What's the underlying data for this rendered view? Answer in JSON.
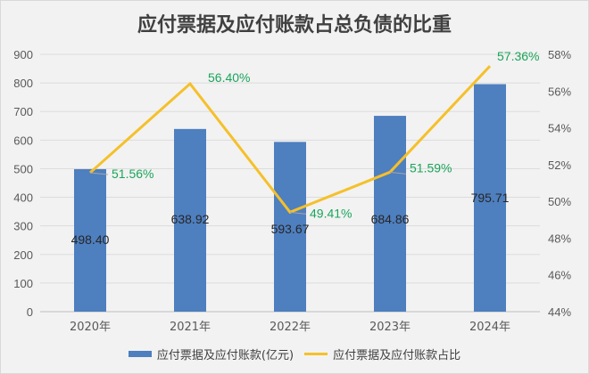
{
  "title": "应付票据及应付账款占总负债的比重",
  "legend": {
    "bar_label": "应付票据及应付账款(亿元)",
    "line_label": "应付票据及应付账款占比"
  },
  "colors": {
    "bar": "#4e7fbf",
    "line": "#f5c02a",
    "line_label": "#1aa55a",
    "bar_label": "#262626",
    "grid": "#dcdcdc",
    "axis_text": "#595959"
  },
  "chart_data": {
    "type": "bar+line",
    "title": "应付票据及应付账款占总负债的比重",
    "categories": [
      "2020年",
      "2021年",
      "2022年",
      "2023年",
      "2024年"
    ],
    "series": [
      {
        "name": "应付票据及应付账款(亿元)",
        "type": "bar",
        "axis": "left",
        "values": [
          498.4,
          638.92,
          593.67,
          684.86,
          795.71
        ],
        "labels": [
          "498.40",
          "638.92",
          "593.67",
          "684.86",
          "795.71"
        ]
      },
      {
        "name": "应付票据及应付账款占比",
        "type": "line",
        "axis": "right",
        "values": [
          51.56,
          56.4,
          49.41,
          51.59,
          57.36
        ],
        "labels": [
          "51.56%",
          "56.40%",
          "49.41%",
          "51.59%",
          "57.36%"
        ]
      }
    ],
    "left_axis": {
      "ylim": [
        0,
        900
      ],
      "ticks": [
        "0",
        "100",
        "200",
        "300",
        "400",
        "500",
        "600",
        "700",
        "800",
        "900"
      ]
    },
    "right_axis": {
      "ylim": [
        44,
        58
      ],
      "ticks": [
        "44%",
        "46%",
        "48%",
        "50%",
        "52%",
        "54%",
        "56%",
        "58%"
      ]
    },
    "grid": true,
    "legend_position": "bottom"
  }
}
